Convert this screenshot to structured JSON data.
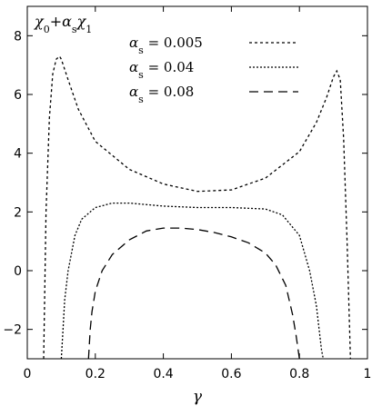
{
  "chart_data": {
    "type": "line",
    "title_parts": {
      "chi0": "χ",
      "sub0": "0",
      "plus": "+",
      "alpha": "α",
      "subs": "s",
      "chi1": "χ",
      "sub1": "1"
    },
    "xlabel": "γ",
    "ylabel": "",
    "xlim": [
      0,
      1
    ],
    "ylim": [
      -3,
      9
    ],
    "x_ticks": [
      0,
      0.2,
      0.4,
      0.6,
      0.8,
      1
    ],
    "x_tick_labels": [
      "0",
      "0.2",
      "0.4",
      "0.6",
      "0.8",
      "1"
    ],
    "y_ticks": [
      -2,
      0,
      2,
      4,
      6,
      8
    ],
    "y_tick_labels": [
      "−2",
      "0",
      "2",
      "4",
      "6",
      "8"
    ],
    "legend_position": "top-right",
    "series": [
      {
        "name": "0.005",
        "legend_alpha": "α",
        "legend_sub": "s",
        "legend_eq": " = 0.005",
        "dash": "3,3",
        "x": [
          0.048,
          0.055,
          0.065,
          0.075,
          0.085,
          0.095,
          0.1,
          0.12,
          0.15,
          0.2,
          0.3,
          0.4,
          0.5,
          0.6,
          0.7,
          0.8,
          0.85,
          0.88,
          0.9,
          0.91,
          0.92,
          0.93,
          0.94,
          0.95
        ],
        "values": [
          -3.0,
          2.0,
          5.2,
          6.7,
          7.2,
          7.3,
          7.2,
          6.5,
          5.5,
          4.4,
          3.45,
          2.95,
          2.7,
          2.75,
          3.15,
          4.05,
          5.05,
          5.9,
          6.6,
          6.8,
          6.5,
          4.5,
          1.0,
          -3.0
        ]
      },
      {
        "name": "0.04",
        "legend_alpha": "α",
        "legend_sub": "s",
        "legend_eq": " = 0.04",
        "dash": "2,2",
        "x": [
          0.1,
          0.105,
          0.11,
          0.12,
          0.14,
          0.16,
          0.2,
          0.25,
          0.3,
          0.4,
          0.5,
          0.6,
          0.7,
          0.75,
          0.8,
          0.83,
          0.85,
          0.86,
          0.865,
          0.87
        ],
        "values": [
          -3.0,
          -2.0,
          -1.0,
          0.0,
          1.2,
          1.75,
          2.15,
          2.3,
          2.3,
          2.2,
          2.15,
          2.15,
          2.1,
          1.9,
          1.2,
          0.0,
          -1.2,
          -2.2,
          -2.7,
          -3.0
        ],
        "note": ""
      },
      {
        "name": "0.08",
        "legend_alpha": "α",
        "legend_sub": "s",
        "legend_eq": " = 0.08",
        "dash": "10,6",
        "x": [
          0.18,
          0.185,
          0.19,
          0.2,
          0.22,
          0.25,
          0.3,
          0.35,
          0.4,
          0.45,
          0.5,
          0.55,
          0.6,
          0.65,
          0.7,
          0.73,
          0.76,
          0.78,
          0.79,
          0.8
        ],
        "values": [
          -3.0,
          -2.0,
          -1.4,
          -0.7,
          0.0,
          0.55,
          1.05,
          1.35,
          1.45,
          1.45,
          1.4,
          1.3,
          1.15,
          0.95,
          0.6,
          0.2,
          -0.5,
          -1.5,
          -2.2,
          -3.0
        ]
      }
    ]
  }
}
